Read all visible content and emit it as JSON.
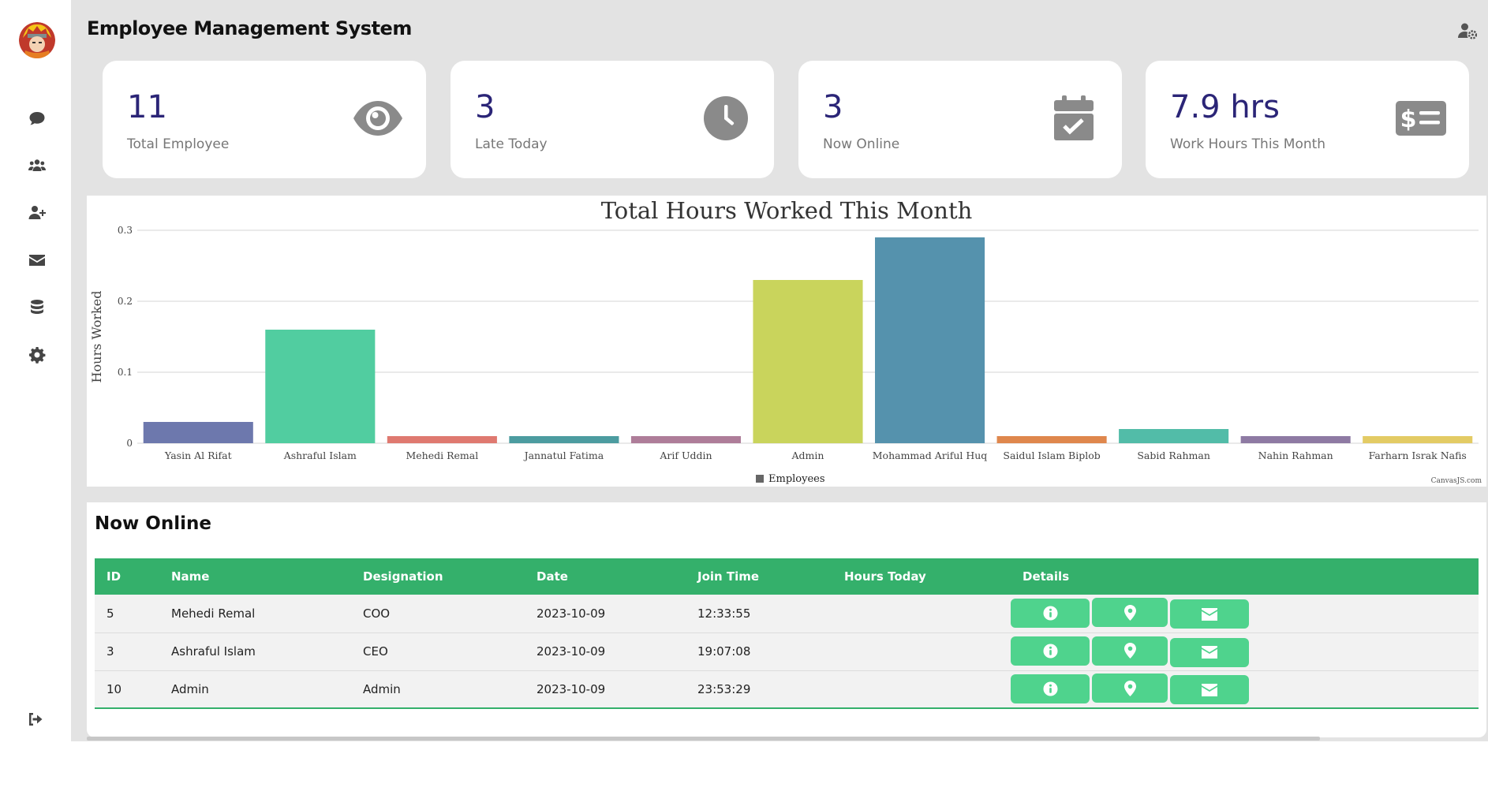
{
  "app": {
    "title": "Employee Management System"
  },
  "sidebar": {
    "items": [
      {
        "name": "chat",
        "icon": "chat-bubble-icon"
      },
      {
        "name": "employees",
        "icon": "users-icon"
      },
      {
        "name": "add-employee",
        "icon": "user-plus-icon"
      },
      {
        "name": "mail",
        "icon": "envelope-icon"
      },
      {
        "name": "database",
        "icon": "database-icon"
      },
      {
        "name": "settings",
        "icon": "gear-icon"
      }
    ],
    "logout_icon": "sign-out-icon"
  },
  "cards": [
    {
      "value": "11",
      "label": "Total Employee",
      "icon": "eye-icon"
    },
    {
      "value": "3",
      "label": "Late Today",
      "icon": "clock-icon"
    },
    {
      "value": "3",
      "label": "Now Online",
      "icon": "calendar-check-icon"
    },
    {
      "value": "7.9 hrs",
      "label": "Work Hours This Month",
      "icon": "money-bill-icon"
    }
  ],
  "chart_data": {
    "type": "bar",
    "title": "Total Hours Worked This Month",
    "ylabel": "Hours Worked",
    "xlabel": "",
    "ylim": [
      0,
      0.3
    ],
    "yticks": [
      "0",
      "0.1",
      "0.2",
      "0.3"
    ],
    "grid": true,
    "legend": {
      "position": "bottom",
      "entries": [
        "Employees"
      ]
    },
    "watermark": "CanvasJS.com",
    "categories": [
      "Yasin Al Rifat",
      "Ashraful Islam",
      "Mehedi Remal",
      "Jannatul Fatima",
      "Arif Uddin",
      "Admin",
      "Mohammad Ariful Huq",
      "Saidul Islam Biplob",
      "Sabid Rahman",
      "Nahin Rahman",
      "Farharn Israk Nafis"
    ],
    "values": [
      0.03,
      0.16,
      0.01,
      0.01,
      0.01,
      0.23,
      0.29,
      0.01,
      0.02,
      0.01,
      0.01
    ],
    "colors": [
      "#6d78ad",
      "#51cda0",
      "#df7970",
      "#4c9ca0",
      "#ae7d99",
      "#c9d45c",
      "#5592ad",
      "#df874d",
      "#52bca8",
      "#8e7aa3",
      "#e3cb64"
    ]
  },
  "online": {
    "title": "Now Online",
    "columns": [
      "ID",
      "Name",
      "Designation",
      "Date",
      "Join Time",
      "Hours Today",
      "Details"
    ],
    "rows": [
      {
        "id": "5",
        "name": "Mehedi Remal",
        "designation": "COO",
        "date": "2023-10-09",
        "join_time": "12:33:55",
        "hours_today": ""
      },
      {
        "id": "3",
        "name": "Ashraful Islam",
        "designation": "CEO",
        "date": "2023-10-09",
        "join_time": "19:07:08",
        "hours_today": ""
      },
      {
        "id": "10",
        "name": "Admin",
        "designation": "Admin",
        "date": "2023-10-09",
        "join_time": "23:53:29",
        "hours_today": ""
      }
    ],
    "row_actions": [
      "info-icon",
      "map-marker-icon",
      "envelope-icon"
    ]
  },
  "colors": {
    "accent": "#34b06b",
    "button": "#4fd38d",
    "card_value": "#2b2577",
    "icon_gray": "#8a8a8a"
  }
}
